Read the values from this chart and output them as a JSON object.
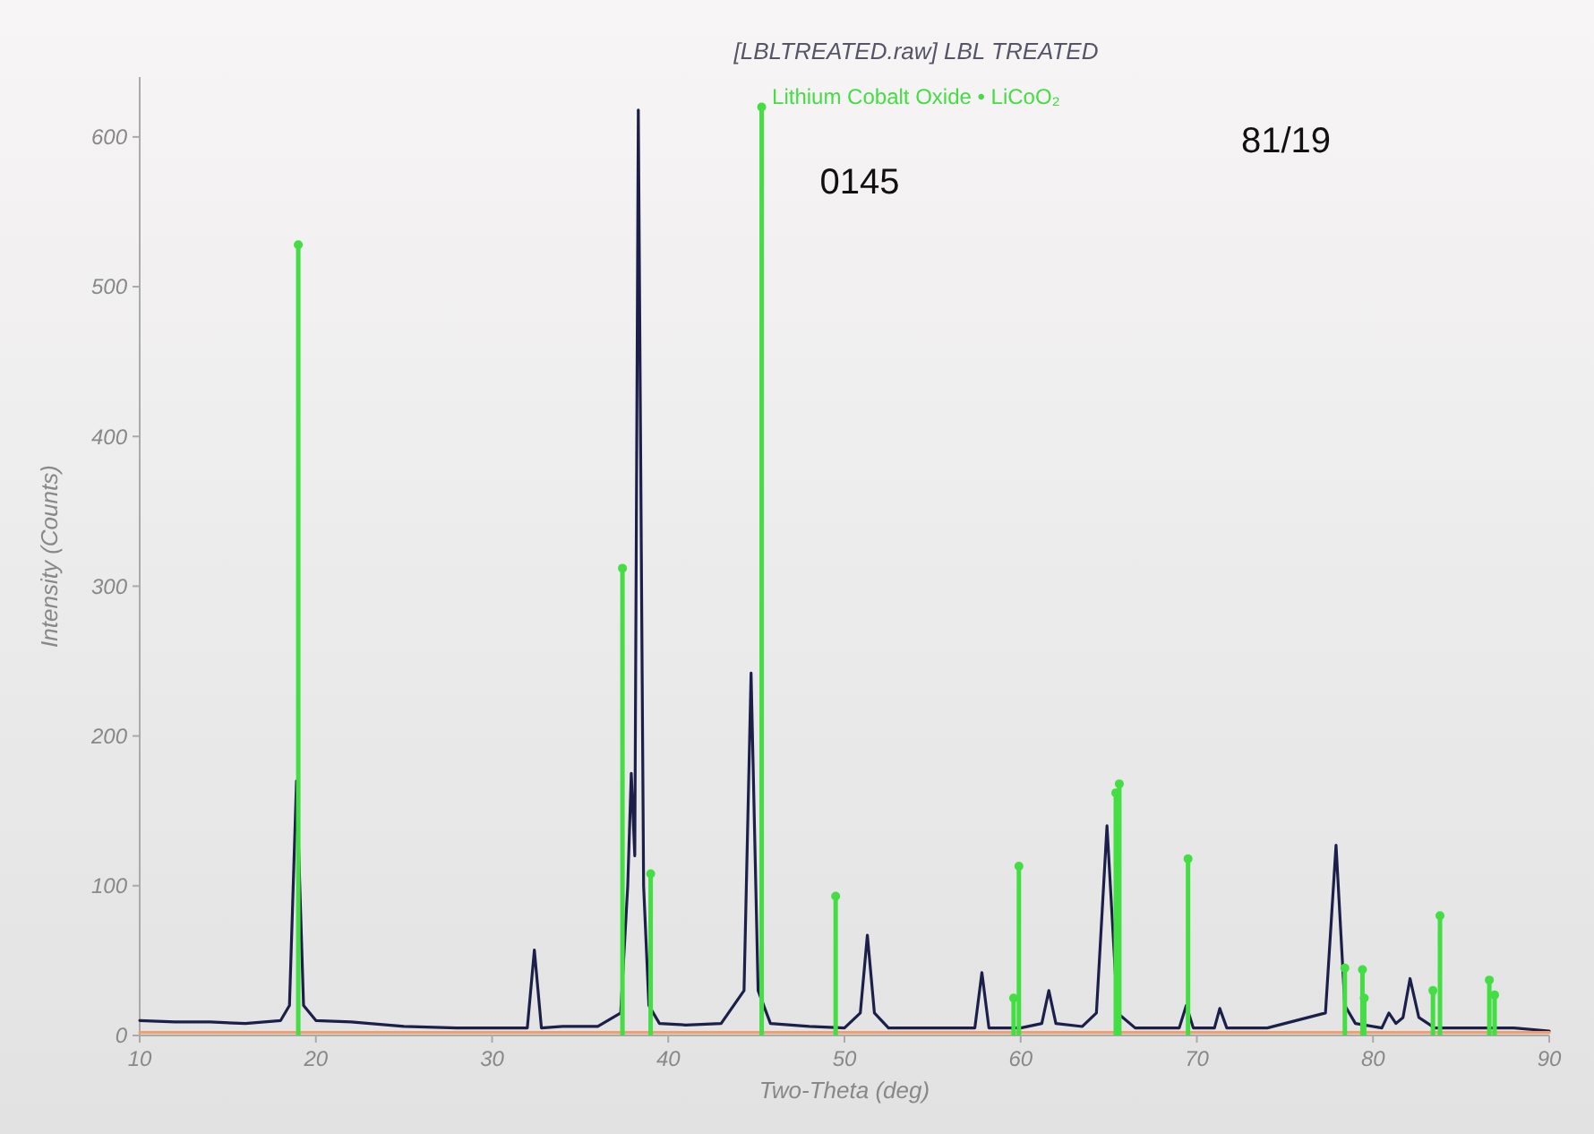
{
  "chart_data": {
    "type": "line",
    "title": "[LBLTREATED.raw] LBL TREATED",
    "xlabel": "Two-Theta (deg)",
    "ylabel": "Intensity (Counts)",
    "annotations": [
      "0145",
      "81/19"
    ],
    "xlim": [
      10,
      90
    ],
    "ylim": [
      0,
      640
    ],
    "xticks": [
      10,
      20,
      30,
      40,
      50,
      60,
      70,
      80,
      90
    ],
    "yticks": [
      0,
      100,
      200,
      300,
      400,
      500,
      600
    ],
    "grid": false,
    "legend": "top",
    "series": [
      {
        "color": "#1c1f4a",
        "x": [
          10,
          12,
          14,
          16,
          18,
          18.5,
          18.9,
          19.3,
          20,
          22,
          25,
          28,
          30,
          32,
          32.4,
          32.8,
          34,
          36,
          37.3,
          37.7,
          37.9,
          38.1,
          38.3,
          38.6,
          38.9,
          39.5,
          41,
          43,
          44.3,
          44.7,
          45.1,
          45.8,
          48,
          50,
          50.9,
          51.3,
          51.7,
          52.5,
          55,
          57.4,
          57.8,
          58.2,
          60,
          61.2,
          61.6,
          62,
          63.5,
          64.3,
          64.9,
          65.5,
          66.5,
          68,
          69,
          69.4,
          69.8,
          71,
          71.3,
          71.7,
          74,
          77.3,
          77.9,
          78.4,
          79,
          80.5,
          80.9,
          81.3,
          81.7,
          82.1,
          82.6,
          83.5,
          86,
          88,
          90
        ],
        "values": [
          10,
          9,
          9,
          8,
          10,
          20,
          170,
          20,
          10,
          9,
          6,
          5,
          5,
          5,
          57,
          5,
          6,
          6,
          15,
          100,
          175,
          120,
          618,
          100,
          20,
          8,
          7,
          8,
          30,
          242,
          30,
          8,
          6,
          5,
          15,
          67,
          15,
          5,
          5,
          5,
          42,
          5,
          5,
          8,
          30,
          8,
          6,
          15,
          140,
          15,
          5,
          5,
          5,
          20,
          5,
          5,
          18,
          5,
          5,
          15,
          127,
          20,
          8,
          5,
          15,
          8,
          12,
          38,
          12,
          5,
          5,
          5,
          3
        ]
      },
      {
        "color": "#f0a070",
        "x": [
          10,
          90
        ],
        "values": [
          2,
          2
        ]
      },
      {
        "type": "lollipop",
        "name": "Lithium Cobalt Oxide • LiCoO₂",
        "color": "#44dd44",
        "marker": "circle",
        "x": [
          19.0,
          37.4,
          39.0,
          45.3,
          49.5,
          59.6,
          59.9,
          65.4,
          65.6,
          69.5,
          78.4,
          79.4,
          79.5,
          83.4,
          83.8,
          86.6,
          86.9
        ],
        "values": [
          528,
          312,
          108,
          620,
          93,
          25,
          113,
          162,
          168,
          118,
          45,
          44,
          25,
          30,
          80,
          37,
          27
        ]
      }
    ]
  }
}
